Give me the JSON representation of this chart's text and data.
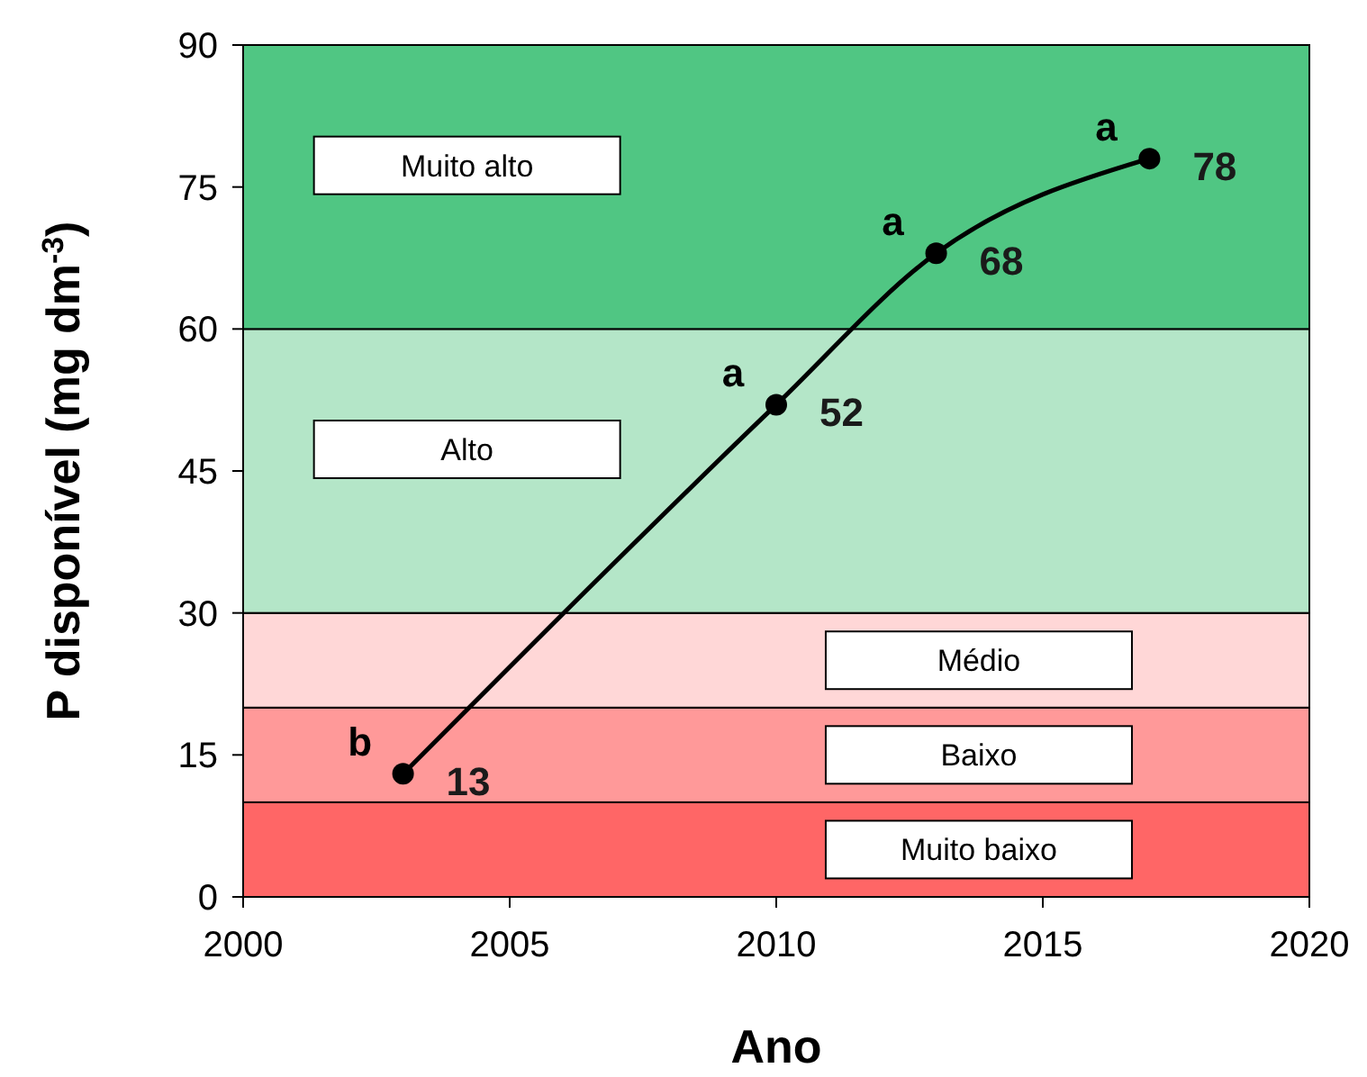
{
  "chart_data": {
    "type": "line",
    "xlabel": "Ano",
    "ylabel": "P disponível (mg dm$^{-3}$)",
    "x": [
      2003,
      2010,
      2013,
      2017
    ],
    "series": [
      {
        "color": "#000000",
        "values": [
          13,
          52,
          68,
          78
        ]
      }
    ],
    "marker": "circle",
    "line_style": "solid",
    "data_labels": true,
    "xlim": [
      2000,
      2020
    ],
    "xticks": [
      2000,
      2005,
      2010,
      2015,
      2020
    ],
    "ylim": [
      0,
      90
    ],
    "yticks": [
      0,
      15,
      30,
      45,
      60,
      75,
      90
    ],
    "bands": [
      {
        "axis": "y",
        "from": 0,
        "to": 10,
        "label": "Muito baixo",
        "color": "#ff6666"
      },
      {
        "axis": "y",
        "from": 10,
        "to": 20,
        "label": "Baixo",
        "color": "#ff9999"
      },
      {
        "axis": "y",
        "from": 20,
        "to": 30,
        "label": "Médio",
        "color": "#ffd7d7"
      },
      {
        "axis": "y",
        "from": 30,
        "to": 60,
        "label": "Alto",
        "color": "#b4e6c8"
      },
      {
        "axis": "y",
        "from": 60,
        "to": 90,
        "label": "Muito alto",
        "color": "#50c683"
      }
    ],
    "annotations": [
      {
        "text": "b",
        "x": 2003,
        "y": 13
      },
      {
        "text": "a",
        "x": 2010,
        "y": 52
      },
      {
        "text": "a",
        "x": 2013,
        "y": 68
      },
      {
        "text": "a",
        "x": 2017,
        "y": 78
      }
    ]
  }
}
